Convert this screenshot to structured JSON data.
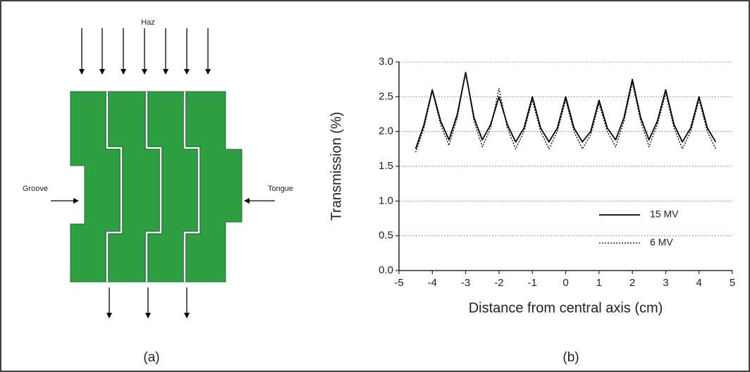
{
  "figure": {
    "panel_a": {
      "top_label": "Haz",
      "left_label": "Groove",
      "right_label": "Tongue",
      "caption": "(a)"
    },
    "panel_b": {
      "caption": "(b)"
    }
  },
  "chart_data": {
    "type": "line",
    "x_label": "Distance from central axis (cm)",
    "y_label": "Transmission (%)",
    "x": [
      -4.5,
      -4.25,
      -4,
      -3.75,
      -3.5,
      -3.25,
      -3,
      -2.75,
      -2.5,
      -2.25,
      -2,
      -1.75,
      -1.5,
      -1.25,
      -1,
      -0.75,
      -0.5,
      -0.25,
      0,
      0.25,
      0.5,
      0.75,
      1,
      1.25,
      1.5,
      1.75,
      2,
      2.25,
      2.5,
      2.75,
      3,
      3.25,
      3.5,
      3.75,
      4,
      4.25,
      4.5
    ],
    "series": [
      {
        "name": "15 MV",
        "color": "#000000",
        "line_style": "solid",
        "values": [
          1.75,
          2.1,
          2.6,
          2.15,
          1.88,
          2.25,
          2.85,
          2.2,
          1.88,
          2.1,
          2.5,
          2.1,
          1.85,
          2.05,
          2.5,
          2.05,
          1.85,
          2.05,
          2.5,
          2.05,
          1.85,
          2.0,
          2.45,
          2.05,
          1.88,
          2.2,
          2.75,
          2.2,
          1.88,
          2.15,
          2.6,
          2.1,
          1.85,
          2.05,
          2.5,
          2.05,
          1.85
        ]
      },
      {
        "name": "6 MV",
        "color": "#000000",
        "line_style": "dotted",
        "values": [
          1.7,
          2.05,
          2.58,
          2.1,
          1.8,
          2.2,
          2.85,
          2.15,
          1.78,
          2.05,
          2.62,
          2.05,
          1.75,
          2.0,
          2.45,
          2.0,
          1.75,
          2.0,
          2.45,
          2.0,
          1.75,
          1.95,
          2.4,
          2.0,
          1.78,
          2.15,
          2.7,
          2.15,
          1.78,
          2.1,
          2.55,
          2.05,
          1.75,
          2.0,
          2.45,
          2.0,
          1.75
        ]
      }
    ],
    "xlim": [
      -5,
      5
    ],
    "xticks": [
      -5,
      -4,
      -3,
      -2,
      -1,
      0,
      1,
      2,
      3,
      4,
      5
    ],
    "ylim": [
      0,
      3
    ],
    "yticks": [
      {
        "value": 0,
        "label": "0.0"
      },
      0.5,
      {
        "value": 1,
        "label": "1.0"
      },
      1.5,
      {
        "value": 2,
        "label": "2.0"
      },
      2.5,
      {
        "value": 3,
        "label": "3.0"
      }
    ],
    "grid": true,
    "legend": "lower right"
  }
}
